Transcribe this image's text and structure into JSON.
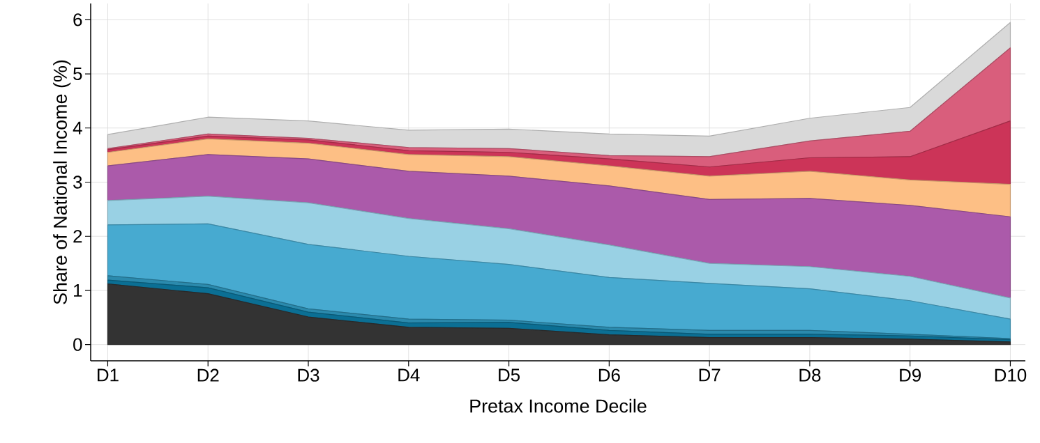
{
  "chart_data": {
    "type": "area",
    "stacked": true,
    "grid": true,
    "xlabel": "Pretax Income Decile",
    "ylabel": "Share of National Income (%)",
    "categories": [
      "D1",
      "D2",
      "D3",
      "D4",
      "D5",
      "D6",
      "D7",
      "D8",
      "D9",
      "D10"
    ],
    "ylim": [
      -0.3,
      6.3
    ],
    "yticks": [
      0,
      1,
      2,
      3,
      4,
      5,
      6
    ],
    "series": [
      {
        "color": "#333333",
        "values": [
          1.12,
          0.94,
          0.51,
          0.32,
          0.3,
          0.18,
          0.13,
          0.13,
          0.1,
          0.05
        ]
      },
      {
        "color": "#0b6f94",
        "values": [
          0.07,
          0.11,
          0.09,
          0.08,
          0.11,
          0.08,
          0.06,
          0.06,
          0.06,
          0.04
        ]
      },
      {
        "color": "#2b8aad",
        "values": [
          0.08,
          0.06,
          0.06,
          0.07,
          0.04,
          0.06,
          0.07,
          0.07,
          0.03,
          0.02
        ]
      },
      {
        "color": "#47aad0",
        "values": [
          0.94,
          1.12,
          1.19,
          1.16,
          1.03,
          0.92,
          0.87,
          0.77,
          0.62,
          0.36
        ]
      },
      {
        "color": "#99d1e4",
        "values": [
          0.45,
          0.51,
          0.77,
          0.7,
          0.66,
          0.6,
          0.37,
          0.41,
          0.45,
          0.39
        ]
      },
      {
        "color": "#ab5aaa",
        "values": [
          0.64,
          0.77,
          0.81,
          0.87,
          0.97,
          1.09,
          1.18,
          1.26,
          1.31,
          1.5
        ]
      },
      {
        "color": "#fdbf85",
        "values": [
          0.25,
          0.29,
          0.29,
          0.31,
          0.36,
          0.37,
          0.43,
          0.5,
          0.47,
          0.6
        ]
      },
      {
        "color": "#cc3458",
        "values": [
          0.05,
          0.05,
          0.06,
          0.07,
          0.08,
          0.13,
          0.17,
          0.25,
          0.43,
          1.17
        ]
      },
      {
        "color": "#d95e7c",
        "values": [
          0.02,
          0.04,
          0.03,
          0.06,
          0.07,
          0.06,
          0.19,
          0.31,
          0.47,
          1.35
        ]
      },
      {
        "color": "#d9d9d9",
        "values": [
          0.26,
          0.31,
          0.32,
          0.32,
          0.36,
          0.4,
          0.38,
          0.42,
          0.44,
          0.47
        ]
      }
    ]
  }
}
